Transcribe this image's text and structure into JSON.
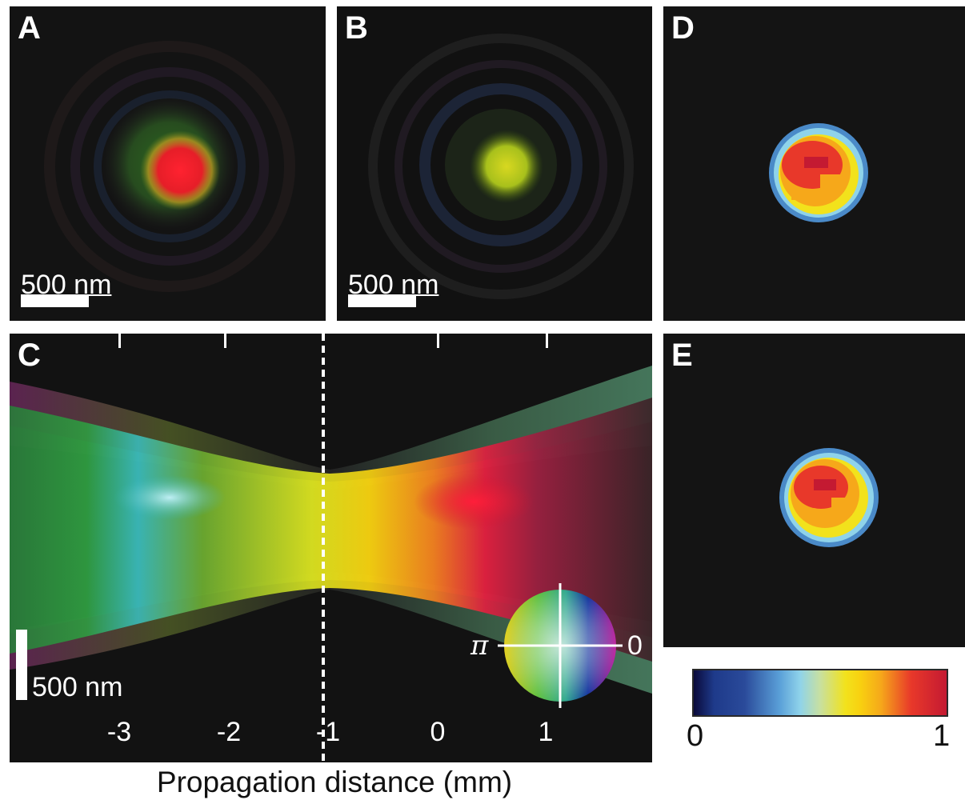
{
  "panels": {
    "a": {
      "letter": "A",
      "scale_label": "500 nm"
    },
    "b": {
      "letter": "B",
      "scale_label": "500 nm"
    },
    "c": {
      "letter": "C",
      "scale_label": "500 nm",
      "ticks": [
        "-3",
        "-2",
        "-1",
        "0",
        "1"
      ],
      "xlabel": "Propagation distance (mm)",
      "phase_wheel": {
        "left_label": "π",
        "right_label": "0"
      }
    },
    "d": {
      "letter": "D"
    },
    "e": {
      "letter": "E"
    }
  },
  "colorbar": {
    "min_label": "0",
    "max_label": "1",
    "colors": [
      "#0a0a3a",
      "#2a4a9a",
      "#5aa0d8",
      "#8fd3ea",
      "#c8e0a0",
      "#f2e21c",
      "#f6a81a",
      "#e8382a",
      "#c41a32"
    ]
  }
}
